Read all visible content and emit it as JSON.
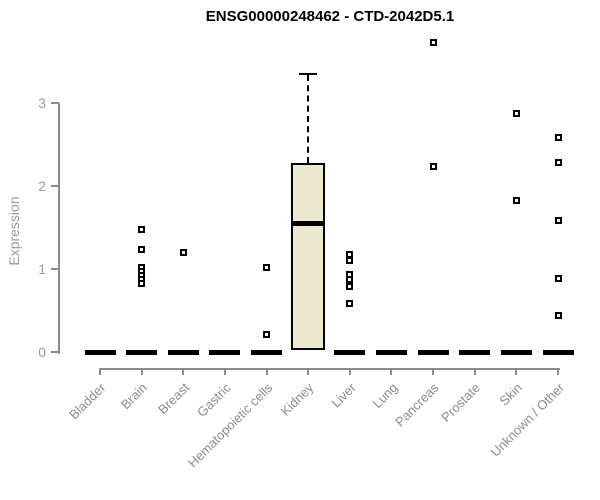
{
  "title": "ENSG00000248462 - CTD-2042D5.1",
  "chart_data": {
    "type": "boxplot",
    "title": "ENSG00000248462 - CTD-2042D5.1",
    "xlabel": "",
    "ylabel": "Expression",
    "ylim": [
      0,
      3.9
    ],
    "yticks": [
      0,
      1,
      2,
      3
    ],
    "grid": false,
    "legend": "none",
    "categories": [
      "Bladder",
      "Brain",
      "Breast",
      "Gastric",
      "Hematopoietic cells",
      "Kidney",
      "Liver",
      "Lung",
      "Pancreas",
      "Prostate",
      "Skin",
      "Unknown / Other"
    ],
    "boxes": [
      {
        "category": "Bladder",
        "median": 0,
        "q1": 0,
        "q3": 0,
        "whisker_low": 0,
        "whisker_high": 0,
        "outliers": []
      },
      {
        "category": "Brain",
        "median": 0,
        "q1": 0,
        "q3": 0,
        "whisker_low": 0,
        "whisker_high": 0,
        "outliers": [
          1.48,
          1.24,
          1.02,
          0.97,
          0.92,
          0.87,
          0.83
        ]
      },
      {
        "category": "Breast",
        "median": 0,
        "q1": 0,
        "q3": 0,
        "whisker_low": 0,
        "whisker_high": 0,
        "outliers": [
          1.2
        ]
      },
      {
        "category": "Gastric",
        "median": 0,
        "q1": 0,
        "q3": 0,
        "whisker_low": 0,
        "whisker_high": 0,
        "outliers": []
      },
      {
        "category": "Hematopoietic cells",
        "median": 0,
        "q1": 0,
        "q3": 0,
        "whisker_low": 0,
        "whisker_high": 0,
        "outliers": [
          1.02,
          0.21
        ]
      },
      {
        "category": "Kidney",
        "median": 1.55,
        "q1": 0.03,
        "q3": 2.28,
        "whisker_low": 0,
        "whisker_high": 3.36,
        "outliers": []
      },
      {
        "category": "Liver",
        "median": 0,
        "q1": 0,
        "q3": 0,
        "whisker_low": 0,
        "whisker_high": 0,
        "outliers": [
          1.17,
          1.1,
          0.93,
          0.87,
          0.79,
          0.59
        ]
      },
      {
        "category": "Lung",
        "median": 0,
        "q1": 0,
        "q3": 0,
        "whisker_low": 0,
        "whisker_high": 0,
        "outliers": []
      },
      {
        "category": "Pancreas",
        "median": 0,
        "q1": 0,
        "q3": 0,
        "whisker_low": 0,
        "whisker_high": 0,
        "outliers": [
          3.73,
          2.23
        ]
      },
      {
        "category": "Prostate",
        "median": 0,
        "q1": 0,
        "q3": 0,
        "whisker_low": 0,
        "whisker_high": 0,
        "outliers": []
      },
      {
        "category": "Skin",
        "median": 0,
        "q1": 0,
        "q3": 0,
        "whisker_low": 0,
        "whisker_high": 0,
        "outliers": [
          2.87,
          1.83
        ]
      },
      {
        "category": "Unknown / Other",
        "median": 0,
        "q1": 0,
        "q3": 0,
        "whisker_low": 0,
        "whisker_high": 0,
        "outliers": [
          2.58,
          2.28,
          1.58,
          0.89,
          0.44
        ]
      }
    ],
    "colors": {
      "box_fill": "#ede9d0",
      "box_border": "#000000",
      "axis": "#8c8c8c",
      "tick_label": "#9a9a9a",
      "title": "#000000"
    }
  }
}
